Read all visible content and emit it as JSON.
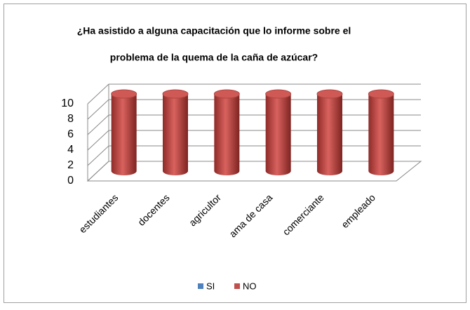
{
  "chart_data": {
    "type": "bar3d",
    "title": [
      "¿Ha asistido a alguna capacitación que lo informe sobre el",
      "problema de la quema de la caña de azúcar?"
    ],
    "categories": [
      "estudiantes",
      "docentes",
      "agricultor",
      "ama de casa",
      "comerciante",
      "empleado"
    ],
    "series": [
      {
        "name": "SI",
        "color": "#4f81bd",
        "values": [
          0,
          0,
          0,
          0,
          0,
          0
        ]
      },
      {
        "name": "NO",
        "color": "#c0504d",
        "values": [
          10,
          10,
          10,
          10,
          10,
          10
        ]
      }
    ],
    "ylim": [
      0,
      10
    ],
    "yticks": [
      0,
      2,
      4,
      6,
      8,
      10
    ],
    "grid": true,
    "legend": "bottom"
  }
}
